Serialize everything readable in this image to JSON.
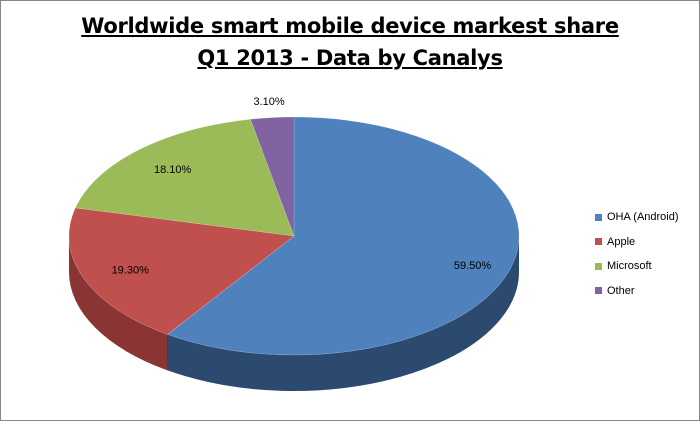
{
  "chart_data": {
    "type": "pie",
    "title": "Worldwide smart mobile device markest share",
    "subtitle": "Q1 2013 - Data by Canalys",
    "categories": [
      "OHA (Android)",
      "Apple",
      "Microsoft",
      "Other"
    ],
    "values": [
      59.5,
      19.3,
      18.1,
      3.1
    ],
    "data_labels": [
      "59.50%",
      "19.30%",
      "18.10%",
      "3.10%"
    ],
    "colors": [
      "#4f81bd",
      "#c0504d",
      "#9bbb59",
      "#8064a2"
    ],
    "side_colors": [
      "#2c4a70",
      "#8a3533",
      "#6f8a3d",
      "#5a4675"
    ],
    "legend_position": "right"
  }
}
